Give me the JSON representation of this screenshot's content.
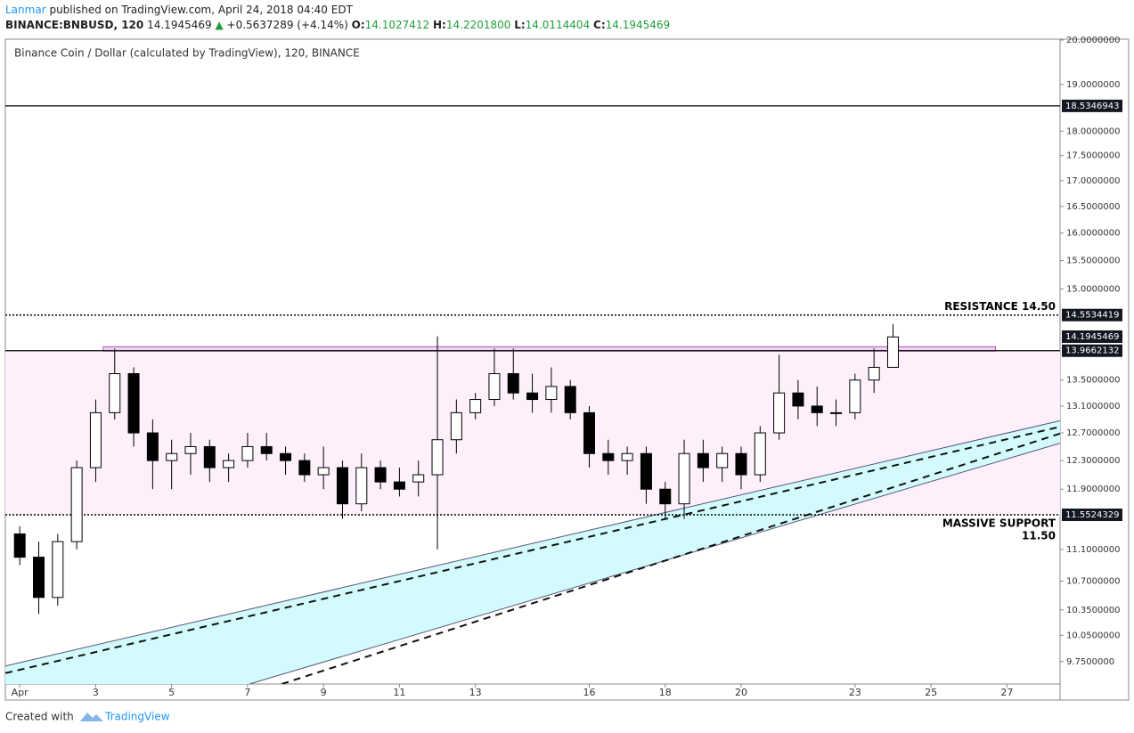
{
  "header": {
    "author": "Lanmar",
    "published": "published on TradingView.com, April 24, 2018 04:40 EDT",
    "symbol": "BINANCE:BNBUSD, 120",
    "price": "14.1945469",
    "arrow": "▲",
    "change": "+0.5637289 (+4.14%)",
    "o_label": "O:",
    "o": "14.1027412",
    "h_label": "H:",
    "h": "14.2201800",
    "l_label": "L:",
    "l": "14.0114404",
    "c_label": "C:",
    "c": "14.1945469"
  },
  "footer": {
    "created": "Created with",
    "brand": "TradingView"
  },
  "chart_data": {
    "type": "candlestick",
    "title": "Binance Coin / Dollar (calculated by TradingView), 120, BINANCE",
    "log_scale": true,
    "ylim": [
      9.5,
      20.02
    ],
    "xlim": [
      0.62,
      28.4
    ],
    "yticks": [
      {
        "value": 20,
        "label": "20.0000000"
      },
      {
        "value": 19,
        "label": "19.0000000"
      },
      {
        "value": 18,
        "label": "18.0000000"
      },
      {
        "value": 17.5,
        "label": "17.5000000"
      },
      {
        "value": 17,
        "label": "17.0000000"
      },
      {
        "value": 16.5,
        "label": "16.5000000"
      },
      {
        "value": 16,
        "label": "16.0000000"
      },
      {
        "value": 15.5,
        "label": "15.5000000"
      },
      {
        "value": 15,
        "label": "15.0000000"
      },
      {
        "value": 13.5,
        "label": "13.5000000"
      },
      {
        "value": 13.1,
        "label": "13.1000000"
      },
      {
        "value": 12.7,
        "label": "12.7000000"
      },
      {
        "value": 12.3,
        "label": "12.3000000"
      },
      {
        "value": 11.9,
        "label": "11.9000000"
      },
      {
        "value": 11.1,
        "label": "11.1000000"
      },
      {
        "value": 10.7,
        "label": "10.7000000"
      },
      {
        "value": 10.35,
        "label": "10.3500000"
      },
      {
        "value": 10.05,
        "label": "10.0500000"
      },
      {
        "value": 9.75,
        "label": "9.7500000"
      }
    ],
    "xticks": [
      {
        "value": 1,
        "label": "Apr"
      },
      3,
      5,
      7,
      9,
      11,
      13,
      16,
      18,
      20,
      23,
      25,
      27
    ],
    "up_color": "#ffffff",
    "down_color": "#000000",
    "candles": {
      "x": [
        1,
        1.5,
        2,
        2.5,
        3,
        3.5,
        4,
        4.5,
        5,
        5.5,
        6,
        6.5,
        7,
        7.5,
        8,
        8.5,
        9,
        9.5,
        10,
        10.5,
        11,
        11.5,
        12,
        12.5,
        13,
        13.5,
        14,
        14.5,
        15,
        15.5,
        16,
        16.5,
        17,
        17.5,
        18,
        18.5,
        19,
        19.5,
        20,
        20.5,
        21,
        21.5,
        22,
        22.5,
        23,
        23.5,
        24
      ],
      "open": [
        11.3,
        11,
        10.5,
        11.2,
        12.2,
        13,
        13.6,
        12.7,
        12.3,
        12.4,
        12.5,
        12.2,
        12.3,
        12.5,
        12.4,
        12.3,
        12.1,
        12.2,
        11.7,
        12.2,
        12,
        12,
        12.1,
        12.6,
        13,
        13.2,
        13.6,
        13.3,
        13.2,
        13.4,
        13,
        12.4,
        12.3,
        12.4,
        11.9,
        11.7,
        12.4,
        12.2,
        12.4,
        12.1,
        12.7,
        13.3,
        13.1,
        13,
        13,
        13.5,
        13.7
      ],
      "high": [
        11.4,
        11.2,
        11.3,
        12.3,
        13.2,
        14,
        13.7,
        12.9,
        12.6,
        12.7,
        12.6,
        12.4,
        12.7,
        12.7,
        12.5,
        12.4,
        12.5,
        12.3,
        12.4,
        12.3,
        12.2,
        12.3,
        14.2,
        13.2,
        13.3,
        14,
        14,
        13.6,
        13.7,
        13.5,
        13.1,
        12.6,
        12.5,
        12.5,
        12,
        12.6,
        12.6,
        12.5,
        12.5,
        12.8,
        13.9,
        13.5,
        13.4,
        13.2,
        13.6,
        14,
        14.4
      ],
      "low": [
        10.9,
        10.3,
        10.4,
        11.1,
        12,
        12.9,
        12.5,
        11.9,
        11.9,
        12.1,
        12,
        12,
        12.2,
        12.3,
        12.1,
        12,
        11.9,
        11.5,
        11.6,
        11.9,
        11.8,
        11.8,
        11.1,
        12.4,
        12.9,
        13.1,
        13.2,
        13,
        13,
        12.9,
        12.2,
        12.1,
        12.1,
        11.7,
        11.5,
        11.5,
        12,
        12,
        11.9,
        12,
        12.6,
        12.9,
        12.8,
        12.8,
        12.9,
        13.3,
        13.7
      ],
      "close": [
        11,
        10.5,
        11.2,
        12.2,
        13,
        13.6,
        12.7,
        12.3,
        12.4,
        12.5,
        12.2,
        12.3,
        12.5,
        12.4,
        12.3,
        12.1,
        12.2,
        11.7,
        12.2,
        12,
        11.9,
        12.1,
        12.6,
        13,
        13.2,
        13.6,
        13.3,
        13.2,
        13.4,
        13,
        12.4,
        12.3,
        12.4,
        11.9,
        11.7,
        12.4,
        12.2,
        12.4,
        12.1,
        12.7,
        13.3,
        13.1,
        13,
        13,
        13.5,
        13.7,
        14.19
      ]
    },
    "last_price": 14.1945469,
    "levels": [
      {
        "value": 18.5346943,
        "style": "solid"
      },
      {
        "value": 14.5534419,
        "style": "dotted",
        "label": [
          "RESISTANCE 14.50"
        ]
      },
      {
        "value": 13.9662132,
        "style": "solid"
      },
      {
        "value": 11.5524329,
        "style": "dotted",
        "label": [
          "MASSIVE SUPPORT",
          "11.50"
        ]
      }
    ],
    "zone": {
      "from": 11.5524329,
      "to": 13.9662132,
      "color": "#fdf0fb"
    },
    "box": {
      "x": [
        3.2,
        26.7
      ],
      "y": [
        13.96,
        14.03
      ],
      "color": "#e8b6ef"
    },
    "channel": {
      "color": "#d3fafc",
      "upper": [
        [
          0.62,
          9.7
        ],
        [
          28.4,
          12.88
        ]
      ],
      "lower": [
        [
          7.05,
          9.5
        ],
        [
          28.4,
          12.55
        ]
      ],
      "dashed": [
        [
          [
            0.62,
            9.62
          ],
          [
            28.4,
            12.79
          ]
        ],
        [
          [
            7.9,
            9.5
          ],
          [
            28.4,
            12.69
          ]
        ]
      ]
    }
  }
}
